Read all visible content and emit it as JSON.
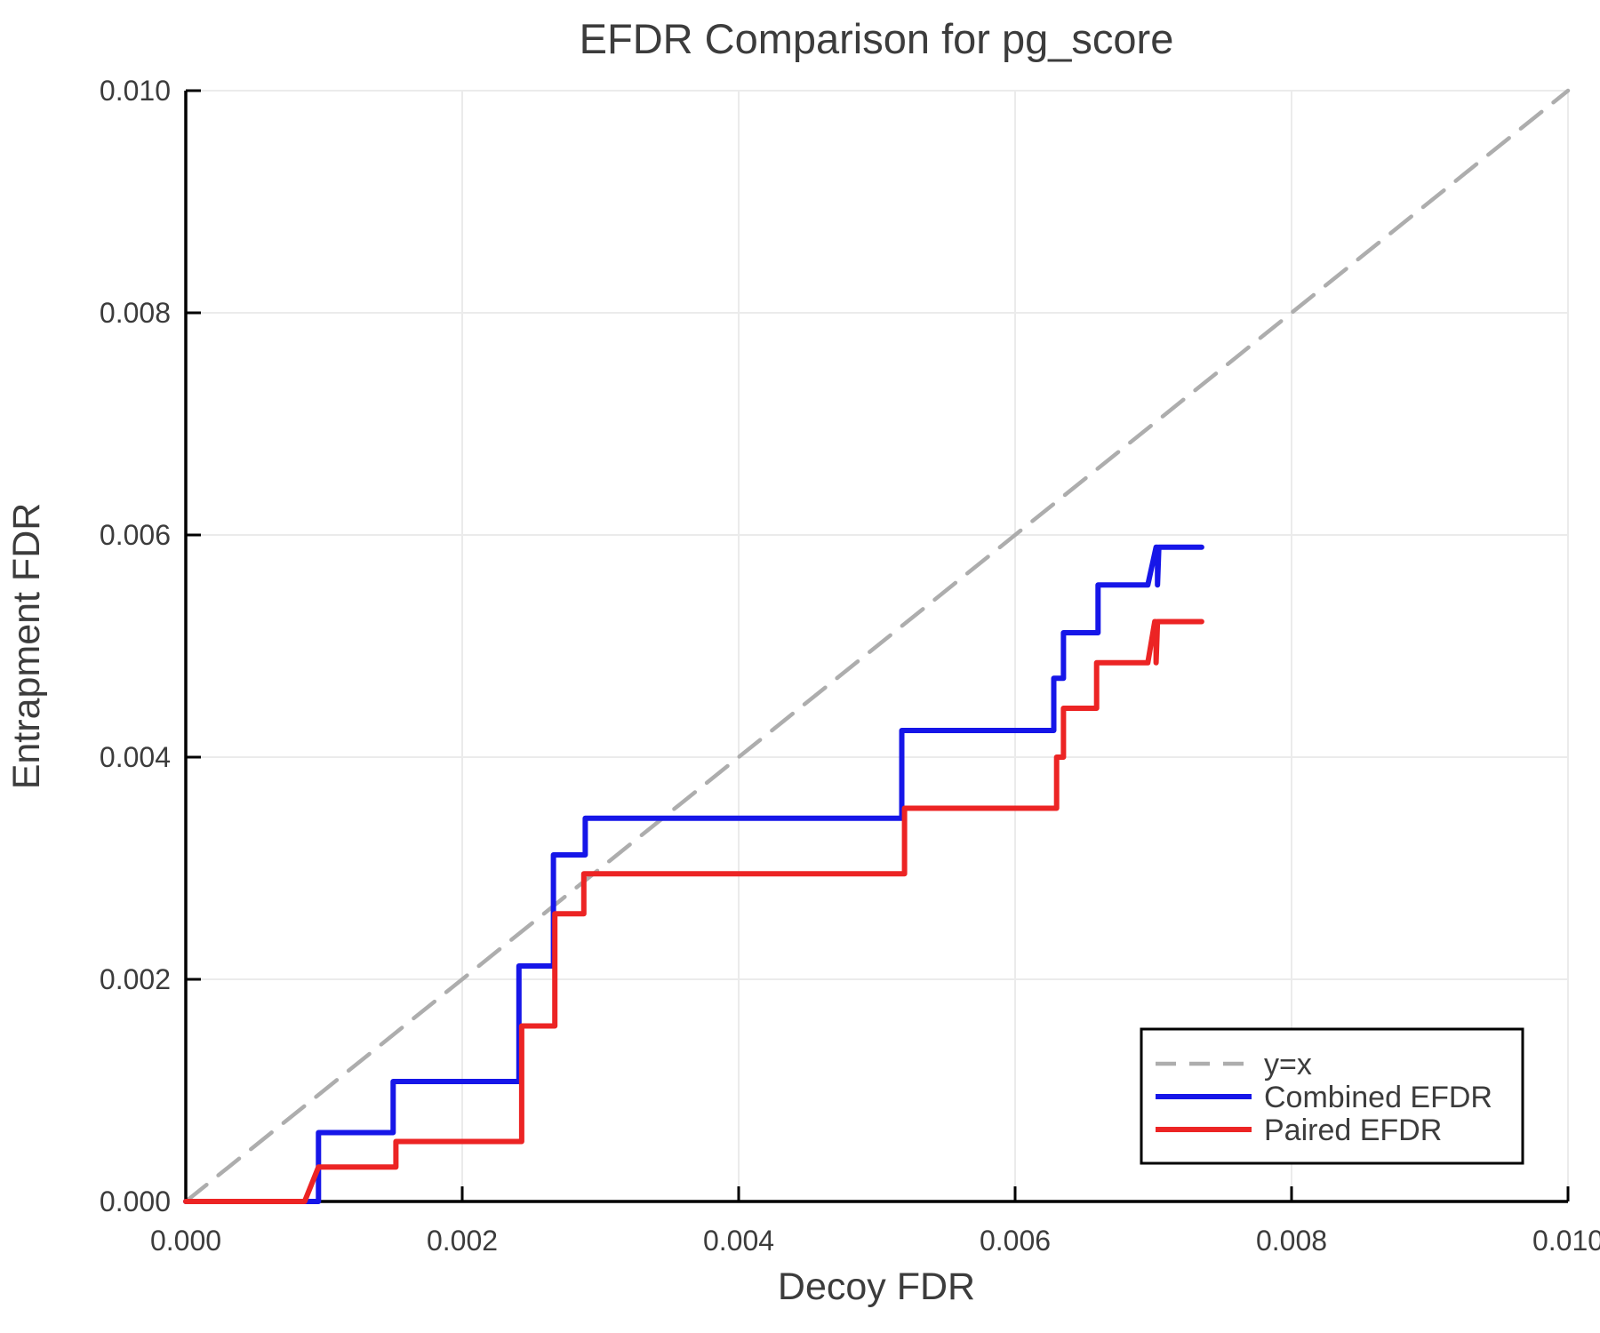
{
  "title": "EFDR Comparison for pg_score",
  "colors": {
    "text": "#3c3c3c",
    "spine": "#000000",
    "grid": "#ebebeb",
    "background": "#ffffff",
    "legend_border": "#000000"
  },
  "legend": {
    "position": "lower right",
    "items": [
      {
        "label": "y=x"
      },
      {
        "label": "Combined EFDR"
      },
      {
        "label": "Paired EFDR"
      }
    ]
  },
  "chart_data": {
    "type": "line",
    "title": "EFDR Comparison for pg_score",
    "xlabel": "Decoy FDR",
    "ylabel": "Entrapment FDR",
    "xlim": [
      0.0,
      0.01
    ],
    "ylim": [
      0.0,
      0.01
    ],
    "grid": true,
    "legend_position": "lower right",
    "xticks": {
      "values": [
        0.0,
        0.002,
        0.004,
        0.006,
        0.008,
        0.01
      ],
      "labels": [
        "0.000",
        "0.002",
        "0.004",
        "0.006",
        "0.008",
        "0.010"
      ]
    },
    "yticks": {
      "values": [
        0.0,
        0.002,
        0.004,
        0.006,
        0.008,
        0.01
      ],
      "labels": [
        "0.000",
        "0.002",
        "0.004",
        "0.006",
        "0.008",
        "0.010"
      ]
    },
    "series": [
      {
        "name": "y=x",
        "color": "#adadad",
        "dashed": true,
        "width": 4.5,
        "x": [
          0.0,
          0.01
        ],
        "y": [
          0.0,
          0.01
        ]
      },
      {
        "name": "Combined EFDR",
        "color": "#1616e8",
        "dashed": false,
        "width": 6,
        "x": [
          0.0,
          0.00096,
          0.00096,
          0.0015,
          0.0015,
          0.00241,
          0.00241,
          0.00266,
          0.00266,
          0.00289,
          0.00289,
          0.00518,
          0.00518,
          0.00628,
          0.00628,
          0.00635,
          0.00635,
          0.0066,
          0.0066,
          0.00696,
          0.00702,
          0.00703,
          0.00703,
          0.00704,
          0.00735
        ],
        "y": [
          0.0,
          0.0,
          0.00062,
          0.00062,
          0.00108,
          0.00108,
          0.00212,
          0.00212,
          0.00312,
          0.00312,
          0.00345,
          0.00345,
          0.00424,
          0.00424,
          0.00471,
          0.00471,
          0.00512,
          0.00512,
          0.00555,
          0.00555,
          0.00589,
          0.00589,
          0.00555,
          0.00589,
          0.00589
        ]
      },
      {
        "name": "Paired EFDR",
        "color": "#ec2424",
        "dashed": false,
        "width": 6,
        "x": [
          0.0,
          0.00086,
          0.00096,
          0.00152,
          0.00152,
          0.00243,
          0.00243,
          0.00267,
          0.00267,
          0.00288,
          0.00288,
          0.0052,
          0.0052,
          0.0063,
          0.0063,
          0.00635,
          0.00635,
          0.00659,
          0.00659,
          0.00696,
          0.00701,
          0.00702,
          0.00702,
          0.00703,
          0.00735
        ],
        "y": [
          0.0,
          0.0,
          0.00031,
          0.00031,
          0.00054,
          0.00054,
          0.00158,
          0.00158,
          0.00259,
          0.00259,
          0.00295,
          0.00295,
          0.00354,
          0.00354,
          0.004,
          0.004,
          0.00444,
          0.00444,
          0.00485,
          0.00485,
          0.00522,
          0.00522,
          0.00485,
          0.00522,
          0.00522
        ]
      }
    ]
  }
}
